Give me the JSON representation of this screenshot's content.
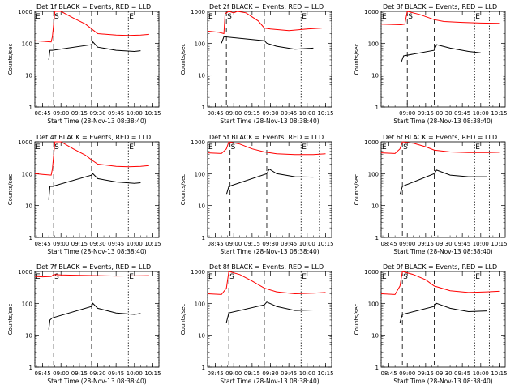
{
  "chart_data": [
    {
      "type": "line",
      "title": "Det 1f BLACK = Events, RED = LLD",
      "xlabel": "Start Time (28-Nov-13 08:38:40)",
      "ylabel": "Counts/sec",
      "yscale": "log",
      "ylim": [
        1,
        1000
      ],
      "xlim": [
        "08:38:40",
        "10:20"
      ],
      "x_ticks": [
        "08:45",
        "09:00",
        "09:15",
        "09:30",
        "09:45",
        "10:00",
        "10:15"
      ],
      "y_ticks": [
        "1",
        "10",
        "100",
        "1000"
      ],
      "markers": [
        {
          "x": "08:38:40",
          "label": "E",
          "style": "dotted"
        },
        {
          "x": "08:54",
          "label": "S",
          "style": "dashed"
        },
        {
          "x": "09:25",
          "label": "",
          "style": "dashed"
        },
        {
          "x": "09:55",
          "label": "E",
          "style": "dotted"
        },
        {
          "x": "10:20",
          "label": "",
          "style": "dotted"
        }
      ],
      "series": [
        {
          "name": "LLD",
          "color": "#ff0000",
          "x": [
            "08:38:40",
            "08:45",
            "08:52",
            "08:53",
            "08:55",
            "09:00",
            "09:10",
            "09:20",
            "09:25",
            "09:30",
            "09:45",
            "09:55",
            "10:05",
            "10:12"
          ],
          "values": [
            120,
            115,
            110,
            160,
            1000,
            1000,
            620,
            400,
            280,
            200,
            180,
            175,
            180,
            190
          ]
        },
        {
          "name": "Events",
          "color": "#000000",
          "x": [
            "08:50",
            "08:51",
            "08:53",
            "09:25",
            "09:26",
            "09:30",
            "09:45",
            "10:00",
            "10:05"
          ],
          "values": [
            30,
            60,
            60,
            90,
            110,
            75,
            60,
            55,
            58
          ]
        }
      ]
    },
    {
      "type": "line",
      "title": "Det 2f BLACK = Events, RED = LLD",
      "xlabel": "Start Time (28-Nov-13 08:38:40)",
      "ylabel": "Counts/sec",
      "yscale": "log",
      "ylim": [
        1,
        1000
      ],
      "xlim": [
        "08:38:40",
        "10:20"
      ],
      "x_ticks": [
        "08:45",
        "09:00",
        "09:15",
        "09:30",
        "09:45",
        "10:00",
        "10:15"
      ],
      "y_ticks": [
        "1",
        "10",
        "100",
        "1000"
      ],
      "markers": [
        {
          "x": "08:38:40",
          "label": "E",
          "style": "dotted"
        },
        {
          "x": "08:54",
          "label": "S",
          "style": "dashed"
        },
        {
          "x": "09:25",
          "label": "",
          "style": "dashed"
        },
        {
          "x": "09:55",
          "label": "E",
          "style": "dotted"
        },
        {
          "x": "10:20",
          "label": "",
          "style": "dotted"
        }
      ],
      "series": [
        {
          "name": "LLD",
          "color": "#ff0000",
          "x": [
            "08:38:40",
            "08:48",
            "08:52",
            "08:53",
            "08:56",
            "09:00",
            "09:03",
            "09:10",
            "09:20",
            "09:25",
            "09:30",
            "09:45",
            "10:00",
            "10:12"
          ],
          "values": [
            240,
            220,
            200,
            850,
            1000,
            900,
            1000,
            900,
            500,
            300,
            280,
            250,
            280,
            300
          ]
        },
        {
          "name": "Events",
          "color": "#000000",
          "x": [
            "08:50",
            "08:52",
            "09:25",
            "09:27",
            "09:35",
            "09:50",
            "10:05"
          ],
          "values": [
            100,
            160,
            120,
            100,
            80,
            65,
            70
          ]
        }
      ]
    },
    {
      "type": "line",
      "title": "Det 3f BLACK = Events, RED = LLD",
      "xlabel": "Start Time (28-Nov-13 08:38:40)",
      "ylabel": "Counts/sec",
      "yscale": "log",
      "ylim": [
        1,
        1000
      ],
      "xlim": [
        "08:38:40",
        "10:20"
      ],
      "x_ticks": [
        "09:00",
        "09:15",
        "09:30",
        "09:45",
        "10:00",
        "10:15"
      ],
      "y_ticks": [
        "1",
        "10",
        "100",
        "1000"
      ],
      "markers": [
        {
          "x": "08:38:40",
          "label": "E",
          "style": "dotted"
        },
        {
          "x": "09:00",
          "label": "S",
          "style": "dashed"
        },
        {
          "x": "09:22",
          "label": "",
          "style": "dashed"
        },
        {
          "x": "09:55",
          "label": "E",
          "style": "dotted"
        },
        {
          "x": "10:07",
          "label": "",
          "style": "dotted"
        }
      ],
      "series": [
        {
          "name": "LLD",
          "color": "#ff0000",
          "x": [
            "08:38:40",
            "08:55",
            "08:58",
            "09:00",
            "09:10",
            "09:22",
            "09:30",
            "09:45",
            "10:00",
            "10:15"
          ],
          "values": [
            400,
            380,
            400,
            1000,
            800,
            550,
            480,
            450,
            430,
            420
          ]
        },
        {
          "name": "Events",
          "color": "#000000",
          "x": [
            "08:55",
            "08:57",
            "09:22",
            "09:24",
            "09:35",
            "09:50",
            "10:00"
          ],
          "values": [
            25,
            40,
            60,
            90,
            70,
            55,
            50
          ]
        }
      ]
    },
    {
      "type": "line",
      "title": "Det 4f BLACK = Events, RED = LLD",
      "xlabel": "Start Time (28-Nov-13 08:38:40)",
      "ylabel": "Counts/sec",
      "yscale": "log",
      "ylim": [
        1,
        1000
      ],
      "xlim": [
        "08:38:40",
        "10:20"
      ],
      "x_ticks": [
        "08:45",
        "09:00",
        "09:15",
        "09:30",
        "09:45",
        "10:00",
        "10:15"
      ],
      "y_ticks": [
        "1",
        "10",
        "100",
        "1000"
      ],
      "markers": [
        {
          "x": "08:38:40",
          "label": "E",
          "style": "dotted"
        },
        {
          "x": "08:54",
          "label": "S",
          "style": "dashed"
        },
        {
          "x": "09:25",
          "label": "",
          "style": "dashed"
        },
        {
          "x": "09:55",
          "label": "E",
          "style": "dotted"
        },
        {
          "x": "10:20",
          "label": "",
          "style": "dotted"
        }
      ],
      "series": [
        {
          "name": "LLD",
          "color": "#ff0000",
          "x": [
            "08:38:40",
            "08:45",
            "08:52",
            "08:53",
            "08:55",
            "09:00",
            "09:10",
            "09:20",
            "09:25",
            "09:30",
            "09:45",
            "09:55",
            "10:05",
            "10:12"
          ],
          "values": [
            100,
            95,
            90,
            140,
            1000,
            1000,
            600,
            380,
            270,
            200,
            170,
            165,
            170,
            180
          ]
        },
        {
          "name": "Events",
          "color": "#000000",
          "x": [
            "08:50",
            "08:51",
            "08:53",
            "09:25",
            "09:26",
            "09:30",
            "09:45",
            "10:00",
            "10:05"
          ],
          "values": [
            15,
            40,
            40,
            90,
            100,
            70,
            55,
            50,
            52
          ]
        }
      ]
    },
    {
      "type": "line",
      "title": "Det 5f BLACK = Events, RED = LLD",
      "xlabel": "Start Time (28-Nov-13 08:38:40)",
      "ylabel": "Counts/sec",
      "yscale": "log",
      "ylim": [
        1,
        1000
      ],
      "xlim": [
        "08:38:40",
        "10:20"
      ],
      "x_ticks": [
        "08:45",
        "09:00",
        "09:15",
        "09:30",
        "09:45",
        "10:00",
        "10:15"
      ],
      "y_ticks": [
        "1",
        "10",
        "100",
        "1000"
      ],
      "markers": [
        {
          "x": "08:38:40",
          "label": "E",
          "style": "dotted"
        },
        {
          "x": "08:57",
          "label": "S",
          "style": "dashed"
        },
        {
          "x": "09:27",
          "label": "",
          "style": "dashed"
        },
        {
          "x": "09:55",
          "label": "E",
          "style": "dotted"
        },
        {
          "x": "10:10",
          "label": "",
          "style": "dotted"
        }
      ],
      "series": [
        {
          "name": "LLD",
          "color": "#ff0000",
          "x": [
            "08:38:40",
            "08:50",
            "08:54",
            "08:56",
            "09:05",
            "09:15",
            "09:25",
            "09:35",
            "09:50",
            "10:05",
            "10:15"
          ],
          "values": [
            450,
            430,
            600,
            1000,
            850,
            600,
            480,
            420,
            400,
            400,
            420
          ]
        },
        {
          "name": "Events",
          "color": "#000000",
          "x": [
            "08:54",
            "08:56",
            "09:27",
            "09:29",
            "09:35",
            "09:50",
            "10:05"
          ],
          "values": [
            22,
            40,
            100,
            140,
            100,
            80,
            78
          ]
        }
      ]
    },
    {
      "type": "line",
      "title": "Det 6f BLACK = Events, RED = LLD",
      "xlabel": "Start Time (28-Nov-13 08:38:40)",
      "ylabel": "Counts/sec",
      "yscale": "log",
      "ylim": [
        1,
        1000
      ],
      "xlim": [
        "08:38:40",
        "10:20"
      ],
      "x_ticks": [
        "08:45",
        "09:00",
        "09:15",
        "09:30",
        "09:45",
        "10:00",
        "10:15"
      ],
      "y_ticks": [
        "1",
        "10",
        "100",
        "1000"
      ],
      "markers": [
        {
          "x": "08:38:40",
          "label": "E",
          "style": "dotted"
        },
        {
          "x": "08:56",
          "label": "S",
          "style": "dashed"
        },
        {
          "x": "09:22",
          "label": "",
          "style": "dashed"
        },
        {
          "x": "09:55",
          "label": "E",
          "style": "dotted"
        },
        {
          "x": "10:07",
          "label": "",
          "style": "dotted"
        }
      ],
      "series": [
        {
          "name": "LLD",
          "color": "#ff0000",
          "x": [
            "08:38:40",
            "08:50",
            "08:54",
            "08:56",
            "09:05",
            "09:15",
            "09:22",
            "09:35",
            "09:50",
            "10:05",
            "10:15"
          ],
          "values": [
            450,
            430,
            600,
            1000,
            900,
            700,
            550,
            480,
            460,
            460,
            470
          ]
        },
        {
          "name": "Events",
          "color": "#000000",
          "x": [
            "08:54",
            "08:56",
            "09:22",
            "09:24",
            "09:35",
            "09:50",
            "10:05"
          ],
          "values": [
            22,
            40,
            100,
            130,
            90,
            80,
            80
          ]
        }
      ]
    },
    {
      "type": "line",
      "title": "Det 7f BLACK = Events, RED = LLD",
      "xlabel": "Start Time (28-Nov-13 08:38:40)",
      "ylabel": "Counts/sec",
      "yscale": "log",
      "ylim": [
        1,
        1000
      ],
      "xlim": [
        "08:38:40",
        "10:20"
      ],
      "x_ticks": [
        "08:45",
        "09:00",
        "09:15",
        "09:30",
        "09:45",
        "10:00",
        "10:15"
      ],
      "y_ticks": [
        "1",
        "10",
        "100",
        "1000"
      ],
      "markers": [
        {
          "x": "08:38:40",
          "label": "E",
          "style": "dotted"
        },
        {
          "x": "08:54",
          "label": "S",
          "style": "dashed"
        },
        {
          "x": "09:25",
          "label": "",
          "style": "dashed"
        },
        {
          "x": "09:55",
          "label": "E",
          "style": "dotted"
        },
        {
          "x": "10:20",
          "label": "",
          "style": "dotted"
        }
      ],
      "series": [
        {
          "name": "LLD",
          "color": "#ff0000",
          "x": [
            "08:38:40",
            "08:45",
            "08:52",
            "08:54",
            "09:00",
            "09:15",
            "09:30",
            "09:45",
            "10:00",
            "10:12"
          ],
          "values": [
            700,
            680,
            700,
            800,
            780,
            760,
            740,
            720,
            730,
            740
          ]
        },
        {
          "name": "Events",
          "color": "#000000",
          "x": [
            "08:50",
            "08:51",
            "08:53",
            "09:25",
            "09:26",
            "09:30",
            "09:45",
            "10:00",
            "10:05"
          ],
          "values": [
            15,
            30,
            35,
            80,
            100,
            70,
            50,
            45,
            48
          ]
        }
      ]
    },
    {
      "type": "line",
      "title": "Det 8f BLACK = Events, RED = LLD",
      "xlabel": "Start Time (28-Nov-13 08:38:40)",
      "ylabel": "Counts/sec",
      "yscale": "log",
      "ylim": [
        1,
        1000
      ],
      "xlim": [
        "08:38:40",
        "10:20"
      ],
      "x_ticks": [
        "08:45",
        "09:00",
        "09:15",
        "09:30",
        "09:45",
        "10:00",
        "10:15"
      ],
      "y_ticks": [
        "1",
        "10",
        "100",
        "1000"
      ],
      "markers": [
        {
          "x": "08:38:40",
          "label": "E",
          "style": "dotted"
        },
        {
          "x": "08:56",
          "label": "S",
          "style": "dashed"
        },
        {
          "x": "09:25",
          "label": "",
          "style": "dashed"
        },
        {
          "x": "09:55",
          "label": "E",
          "style": "dotted"
        },
        {
          "x": "10:20",
          "label": "",
          "style": "dotted"
        }
      ],
      "series": [
        {
          "name": "LLD",
          "color": "#ff0000",
          "x": [
            "08:38:40",
            "08:50",
            "08:54",
            "08:56",
            "09:05",
            "09:15",
            "09:25",
            "09:35",
            "09:50",
            "10:05",
            "10:15"
          ],
          "values": [
            200,
            190,
            300,
            1000,
            800,
            500,
            300,
            230,
            200,
            210,
            220
          ]
        },
        {
          "name": "Events",
          "color": "#000000",
          "x": [
            "08:54",
            "08:56",
            "09:25",
            "09:27",
            "09:35",
            "09:50",
            "10:05"
          ],
          "values": [
            25,
            50,
            90,
            110,
            80,
            60,
            62
          ]
        }
      ]
    },
    {
      "type": "line",
      "title": "Det 9f BLACK = Events, RED = LLD",
      "xlabel": "Start Time (28-Nov-13 08:38:40)",
      "ylabel": "Counts/sec",
      "yscale": "log",
      "ylim": [
        1,
        1000
      ],
      "xlim": [
        "08:38:40",
        "10:20"
      ],
      "x_ticks": [
        "08:45",
        "09:00",
        "09:15",
        "09:30",
        "09:45",
        "10:00",
        "10:15"
      ],
      "y_ticks": [
        "1",
        "10",
        "100",
        "1000"
      ],
      "markers": [
        {
          "x": "08:38:40",
          "label": "E",
          "style": "dotted"
        },
        {
          "x": "08:56",
          "label": "S",
          "style": "dashed"
        },
        {
          "x": "09:22",
          "label": "",
          "style": "dashed"
        },
        {
          "x": "09:55",
          "label": "E",
          "style": "dotted"
        },
        {
          "x": "10:07",
          "label": "",
          "style": "dotted"
        }
      ],
      "series": [
        {
          "name": "LLD",
          "color": "#ff0000",
          "x": [
            "08:38:40",
            "08:50",
            "08:54",
            "08:56",
            "09:05",
            "09:15",
            "09:22",
            "09:35",
            "09:50",
            "10:05",
            "10:15"
          ],
          "values": [
            200,
            190,
            350,
            1000,
            800,
            550,
            350,
            250,
            220,
            230,
            240
          ]
        },
        {
          "name": "Events",
          "color": "#000000",
          "x": [
            "08:54",
            "08:56",
            "09:22",
            "09:24",
            "09:35",
            "09:50",
            "10:05"
          ],
          "values": [
            25,
            45,
            80,
            100,
            70,
            55,
            58
          ]
        }
      ]
    }
  ]
}
